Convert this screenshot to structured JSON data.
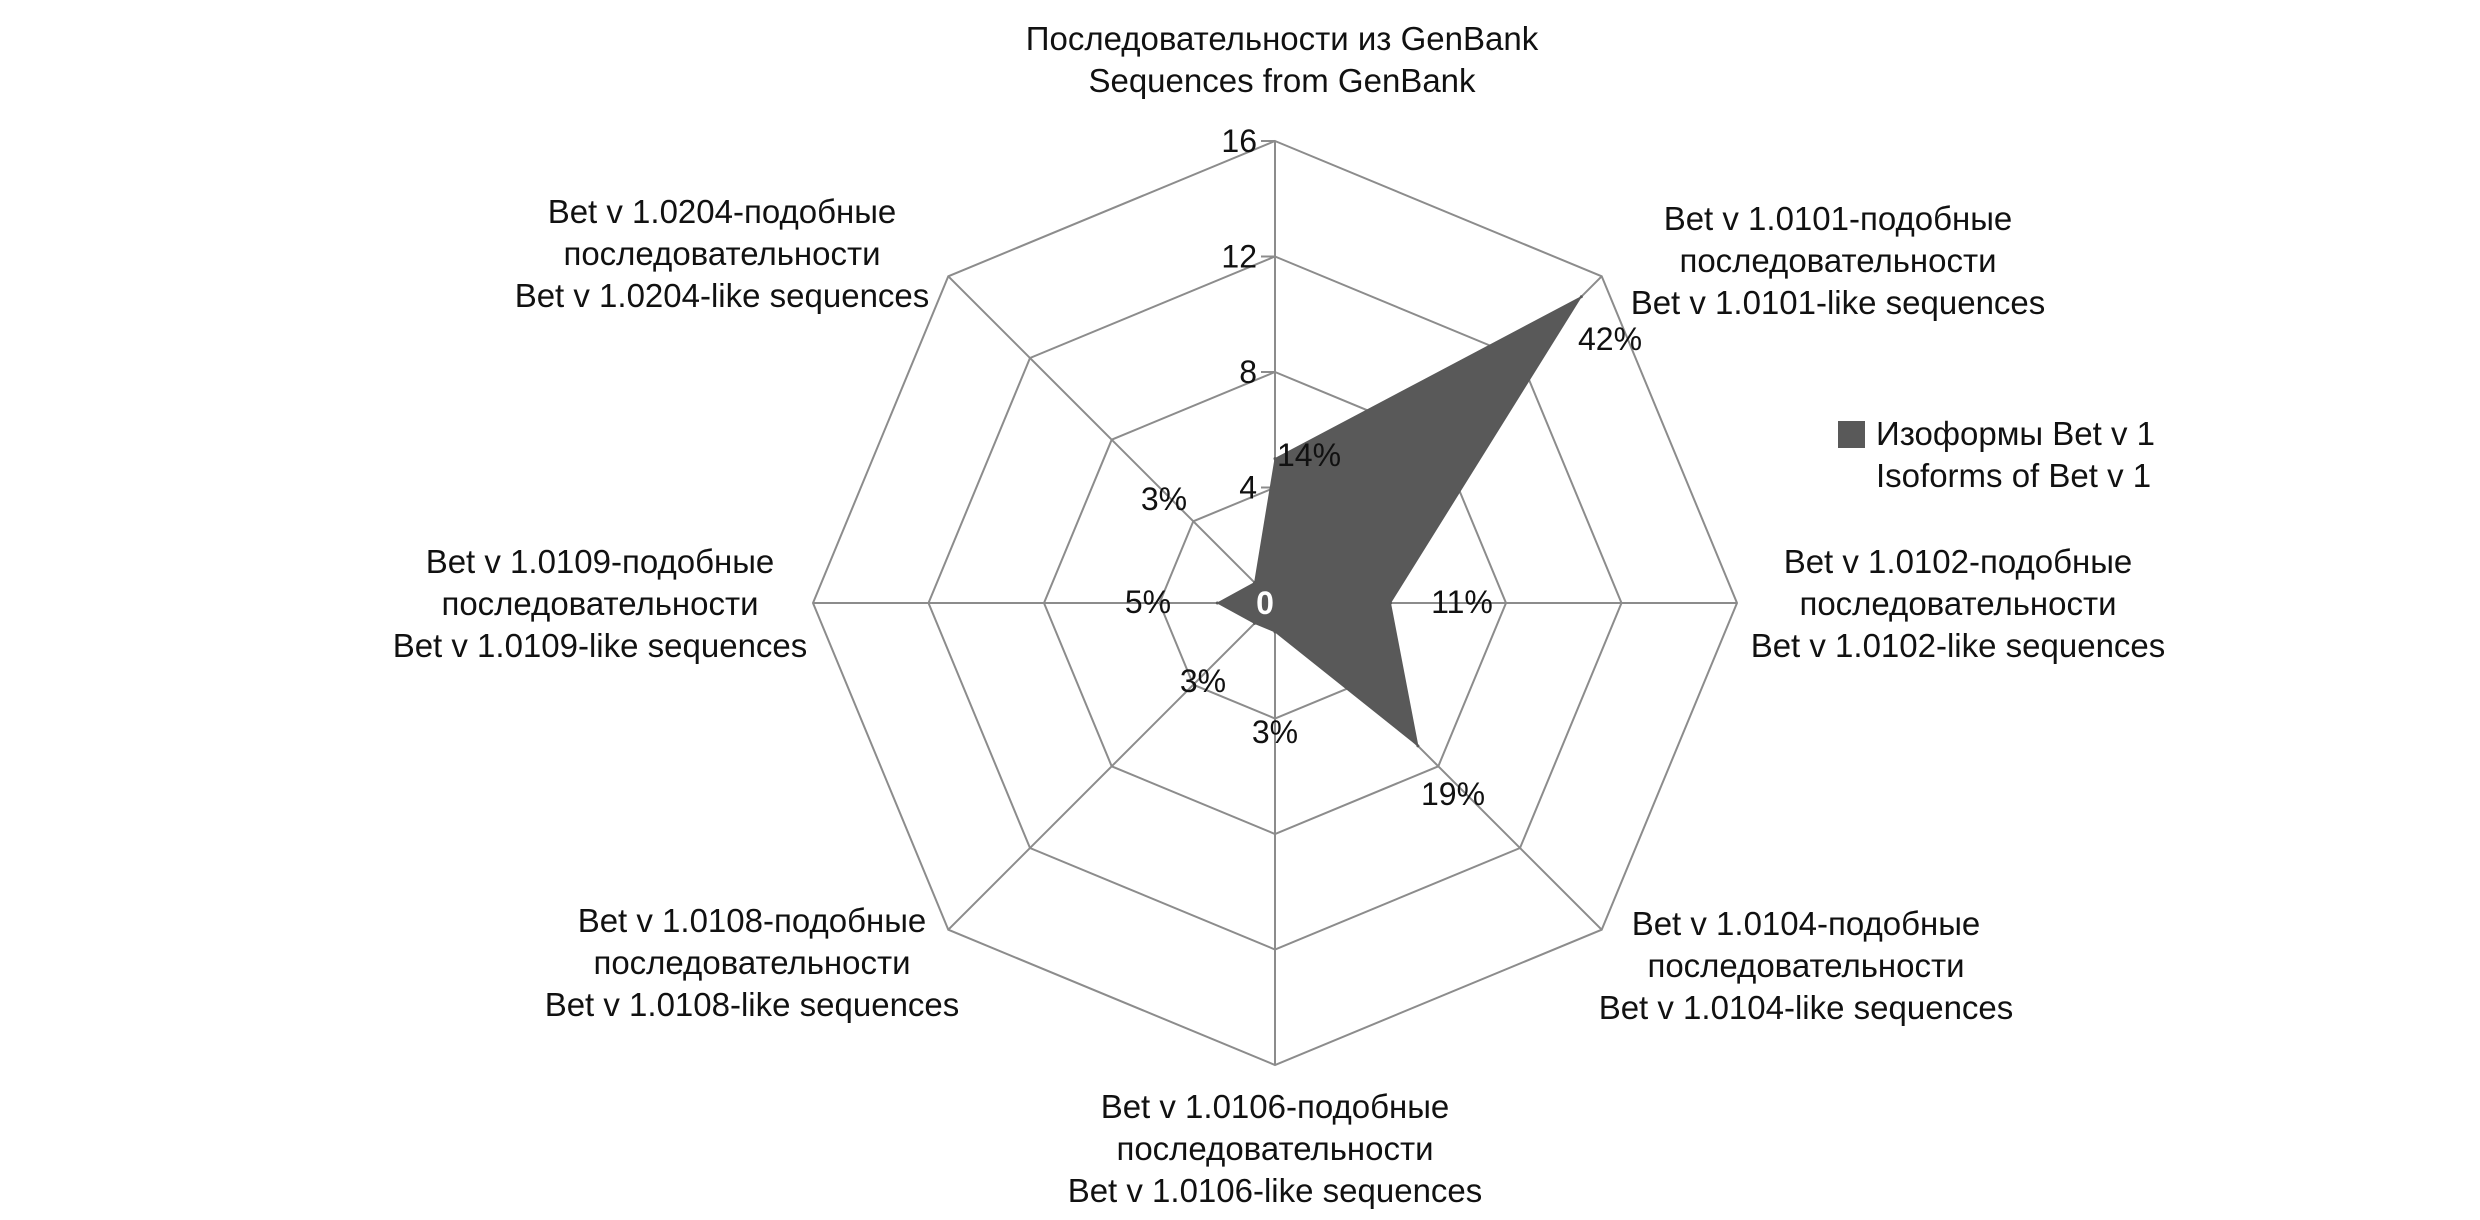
{
  "chart_data": {
    "type": "radar",
    "rlim": [
      0,
      16
    ],
    "r_ticks": [
      "0",
      "4",
      "8",
      "12",
      "16"
    ],
    "grid": true,
    "legend_position": "right",
    "categories": [
      [
        "Последовательности из GenBank",
        "Sequences from GenBank"
      ],
      [
        "Bet v 1.0101-подобные",
        "последовательности",
        "Bet v 1.0101-like sequences"
      ],
      [
        "Bet v 1.0102-подобные",
        "последовательности",
        "Bet v 1.0102-like sequences"
      ],
      [
        "Bet v 1.0104-подобные",
        "последовательности",
        "Bet v 1.0104-like sequences"
      ],
      [
        "Bet v 1.0106-подобные",
        "последовательности",
        "Bet v 1.0106-like sequences"
      ],
      [
        "Bet v 1.0108-подобные",
        "последовательности",
        "Bet v 1.0108-like sequences"
      ],
      [
        "Bet v 1.0109-подобные",
        "последовательности",
        "Bet v 1.0109-like sequences"
      ],
      [
        "Bet v 1.0204-подобные",
        "последовательности",
        "Bet v 1.0204-like sequences"
      ]
    ],
    "series": [
      {
        "name": [
          "Изоформы Bet v 1",
          "Isoforms of Bet v 1"
        ],
        "color": "#595959",
        "values": [
          5,
          15,
          4,
          7,
          1,
          1,
          2,
          1
        ],
        "data_labels": [
          "14%",
          "42%",
          "11%",
          "19%",
          "3%",
          "3%",
          "5%",
          "3%"
        ]
      }
    ]
  }
}
